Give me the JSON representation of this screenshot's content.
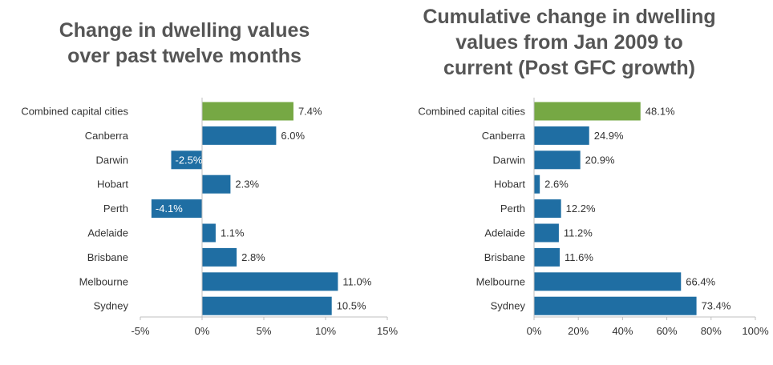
{
  "colors": {
    "highlight": "#76a844",
    "bar": "#1f6ea3",
    "axis": "#bfbfbf"
  },
  "chart_data": [
    {
      "type": "bar",
      "orientation": "horizontal",
      "title": "Change in dwelling values\nover past twelve months",
      "categories": [
        "Combined capital cities",
        "Canberra",
        "Darwin",
        "Hobart",
        "Perth",
        "Adelaide",
        "Brisbane",
        "Melbourne",
        "Sydney"
      ],
      "values": [
        7.4,
        6.0,
        -2.5,
        2.3,
        -4.1,
        1.1,
        2.8,
        11.0,
        10.5
      ],
      "value_labels": [
        "7.4%",
        "6.0%",
        "-2.5%",
        "2.3%",
        "-4.1%",
        "1.1%",
        "2.8%",
        "11.0%",
        "10.5%"
      ],
      "xlim": [
        -5,
        15
      ],
      "xticks": [
        -5,
        0,
        5,
        10,
        15
      ],
      "xtick_labels": [
        "-5%",
        "0%",
        "5%",
        "10%",
        "15%"
      ],
      "highlight_category": "Combined capital cities",
      "grid": false
    },
    {
      "type": "bar",
      "orientation": "horizontal",
      "title": "Cumulative change in dwelling\nvalues from Jan 2009 to\ncurrent (Post GFC growth)",
      "categories": [
        "Combined capital cities",
        "Canberra",
        "Darwin",
        "Hobart",
        "Perth",
        "Adelaide",
        "Brisbane",
        "Melbourne",
        "Sydney"
      ],
      "values": [
        48.1,
        24.9,
        20.9,
        2.6,
        12.2,
        11.2,
        11.6,
        66.4,
        73.4
      ],
      "value_labels": [
        "48.1%",
        "24.9%",
        "20.9%",
        "2.6%",
        "12.2%",
        "11.2%",
        "11.6%",
        "66.4%",
        "73.4%"
      ],
      "xlim": [
        0,
        100
      ],
      "xticks": [
        0,
        20,
        40,
        60,
        80,
        100
      ],
      "xtick_labels": [
        "0%",
        "20%",
        "40%",
        "60%",
        "80%",
        "100%"
      ],
      "highlight_category": "Combined capital cities",
      "grid": false
    }
  ]
}
